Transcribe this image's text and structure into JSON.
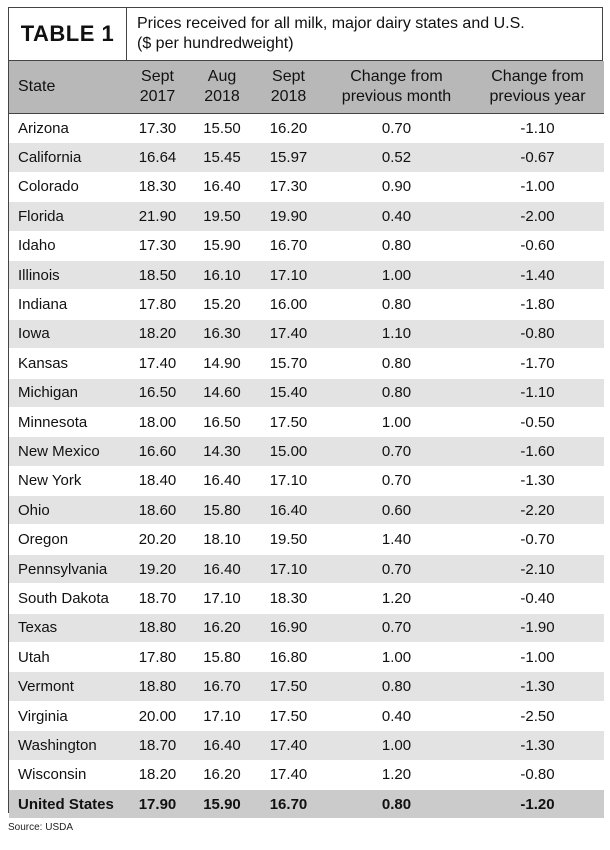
{
  "header": {
    "table_label": "TABLE 1",
    "title_line1": "Prices received for all milk, major dairy states and U.S.",
    "title_line2": "($ per hundredweight)"
  },
  "columns": [
    {
      "line1": "State",
      "line2": ""
    },
    {
      "line1": "Sept",
      "line2": "2017"
    },
    {
      "line1": "Aug",
      "line2": "2018"
    },
    {
      "line1": "Sept",
      "line2": "2018"
    },
    {
      "line1": "Change from",
      "line2": "previous month"
    },
    {
      "line1": "Change from",
      "line2": "previous year"
    }
  ],
  "rows": [
    [
      "Arizona",
      "17.30",
      "15.50",
      "16.20",
      "0.70",
      "-1.10"
    ],
    [
      "California",
      "16.64",
      "15.45",
      "15.97",
      "0.52",
      "-0.67"
    ],
    [
      "Colorado",
      "18.30",
      "16.40",
      "17.30",
      "0.90",
      "-1.00"
    ],
    [
      "Florida",
      "21.90",
      "19.50",
      "19.90",
      "0.40",
      "-2.00"
    ],
    [
      "Idaho",
      "17.30",
      "15.90",
      "16.70",
      "0.80",
      "-0.60"
    ],
    [
      "Illinois",
      "18.50",
      "16.10",
      "17.10",
      "1.00",
      "-1.40"
    ],
    [
      "Indiana",
      "17.80",
      "15.20",
      "16.00",
      "0.80",
      "-1.80"
    ],
    [
      "Iowa",
      "18.20",
      "16.30",
      "17.40",
      "1.10",
      "-0.80"
    ],
    [
      "Kansas",
      "17.40",
      "14.90",
      "15.70",
      "0.80",
      "-1.70"
    ],
    [
      "Michigan",
      "16.50",
      "14.60",
      "15.40",
      "0.80",
      "-1.10"
    ],
    [
      "Minnesota",
      "18.00",
      "16.50",
      "17.50",
      "1.00",
      "-0.50"
    ],
    [
      "New Mexico",
      "16.60",
      "14.30",
      "15.00",
      "0.70",
      "-1.60"
    ],
    [
      "New York",
      "18.40",
      "16.40",
      "17.10",
      "0.70",
      "-1.30"
    ],
    [
      "Ohio",
      "18.60",
      "15.80",
      "16.40",
      "0.60",
      "-2.20"
    ],
    [
      "Oregon",
      "20.20",
      "18.10",
      "19.50",
      "1.40",
      "-0.70"
    ],
    [
      "Pennsylvania",
      "19.20",
      "16.40",
      "17.10",
      "0.70",
      "-2.10"
    ],
    [
      "South Dakota",
      "18.70",
      "17.10",
      "18.30",
      "1.20",
      "-0.40"
    ],
    [
      "Texas",
      "18.80",
      "16.20",
      "16.90",
      "0.70",
      "-1.90"
    ],
    [
      "Utah",
      "17.80",
      "15.80",
      "16.80",
      "1.00",
      "-1.00"
    ],
    [
      "Vermont",
      "18.80",
      "16.70",
      "17.50",
      "0.80",
      "-1.30"
    ],
    [
      "Virginia",
      "20.00",
      "17.10",
      "17.50",
      "0.40",
      "-2.50"
    ],
    [
      "Washington",
      "18.70",
      "16.40",
      "17.40",
      "1.00",
      "-1.30"
    ],
    [
      "Wisconsin",
      "18.20",
      "16.20",
      "17.40",
      "1.20",
      "-0.80"
    ]
  ],
  "total": [
    "United States",
    "17.90",
    "15.90",
    "16.70",
    "0.80",
    "-1.20"
  ],
  "source": "Source: USDA"
}
